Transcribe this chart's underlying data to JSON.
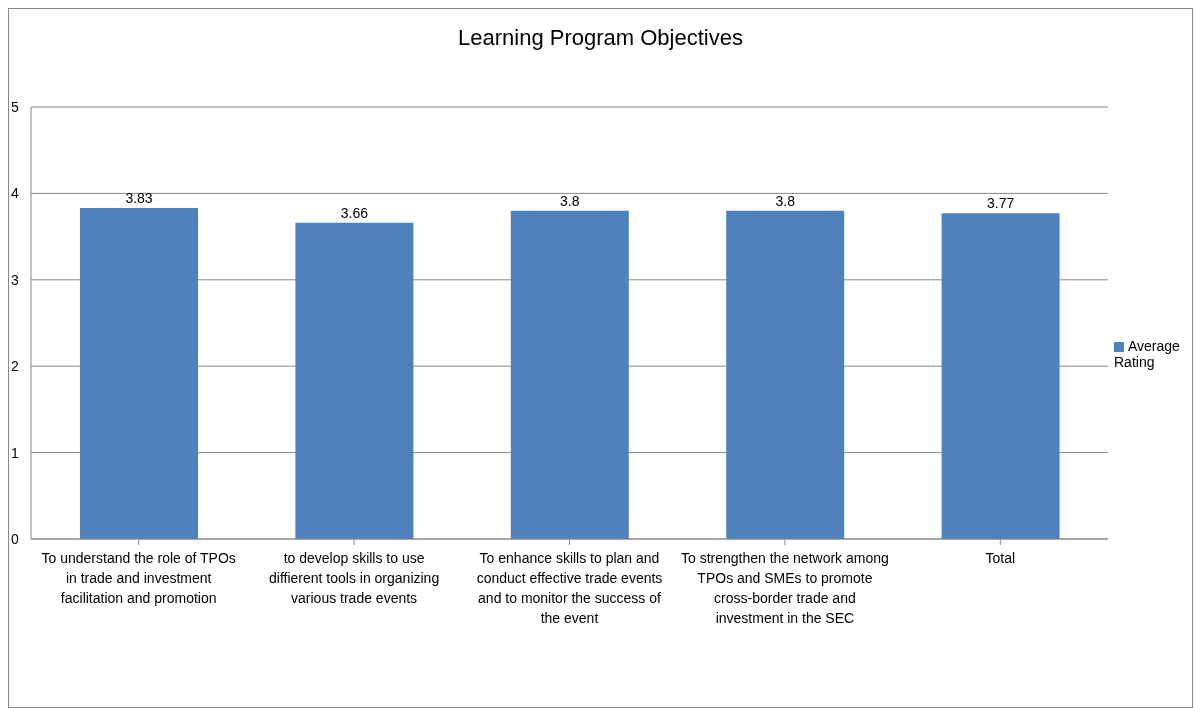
{
  "chart_data": {
    "type": "bar",
    "title": "Learning Program Objectives",
    "categories": [
      "To understand the role of TPOs in trade and investment facilitation and promotion",
      "to develop skills to use diffierent tools in organizing various trade events",
      "To enhance skills to plan and conduct effective trade events and to monitor the success of the event",
      "To strengthen the network among TPOs and SMEs to promote cross-border trade and investment in the SEC",
      "Total"
    ],
    "series": [
      {
        "name": "Average Rating",
        "color": "#4f81bd",
        "values": [
          3.83,
          3.66,
          3.8,
          3.8,
          3.77
        ]
      }
    ],
    "ylim": [
      0,
      5
    ],
    "yticks": [
      0,
      1,
      2,
      3,
      4,
      5
    ],
    "grid": "y",
    "legend": "right",
    "data_labels": true
  }
}
